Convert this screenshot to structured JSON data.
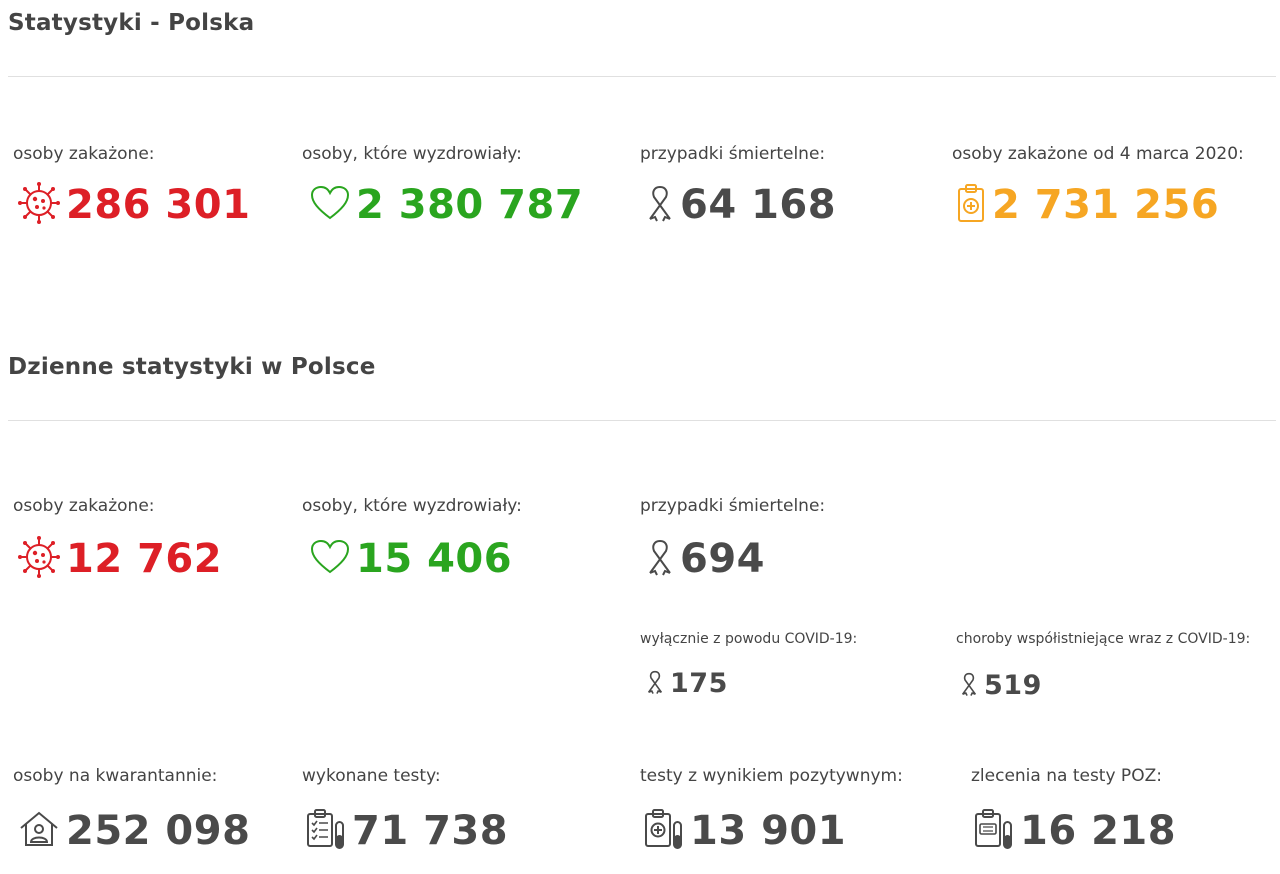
{
  "sections": {
    "total_title": "Statystyki - Polska",
    "daily_title": "Dzienne statystyki w Polsce"
  },
  "total": {
    "infected": {
      "label": "osoby zakażone:",
      "value": "286 301",
      "icon": "virus-icon"
    },
    "recovered": {
      "label": "osoby, które wyzdrowiały:",
      "value": "2 380 787",
      "icon": "heart-icon"
    },
    "deaths": {
      "label": "przypadki śmiertelne:",
      "value": "64 168",
      "icon": "ribbon-icon"
    },
    "infected_since": {
      "label": "osoby zakażone od 4 marca 2020:",
      "value": "2 731 256",
      "icon": "clipboard-medical-icon"
    }
  },
  "daily": {
    "infected": {
      "label": "osoby zakażone:",
      "value": "12 762",
      "icon": "virus-icon"
    },
    "recovered": {
      "label": "osoby, które wyzdrowiały:",
      "value": "15 406",
      "icon": "heart-icon"
    },
    "deaths": {
      "label": "przypadki śmiertelne:",
      "value": "694",
      "icon": "ribbon-icon"
    },
    "deaths_covid_only": {
      "label": "wyłącznie z powodu COVID-19:",
      "value": "175",
      "icon": "ribbon-icon"
    },
    "deaths_comorbid": {
      "label": "choroby współistniejące wraz z COVID-19:",
      "value": "519",
      "icon": "ribbon-icon"
    },
    "quarantine": {
      "label": "osoby na kwarantannie:",
      "value": "252 098",
      "icon": "house-person-icon"
    },
    "tests": {
      "label": "wykonane testy:",
      "value": "71 738",
      "icon": "checklist-test-tube-icon"
    },
    "positive_tests": {
      "label": "testy z wynikiem pozytywnym:",
      "value": "13 901",
      "icon": "clipboard-plus-test-tube-icon"
    },
    "poz_orders": {
      "label": "zlecenia na testy POZ:",
      "value": "16 218",
      "icon": "clipboard-poz-icon"
    }
  },
  "colors": {
    "red": "#dd1f26",
    "green": "#2aa51f",
    "gray": "#4a4a4a",
    "orange": "#f6a623"
  }
}
